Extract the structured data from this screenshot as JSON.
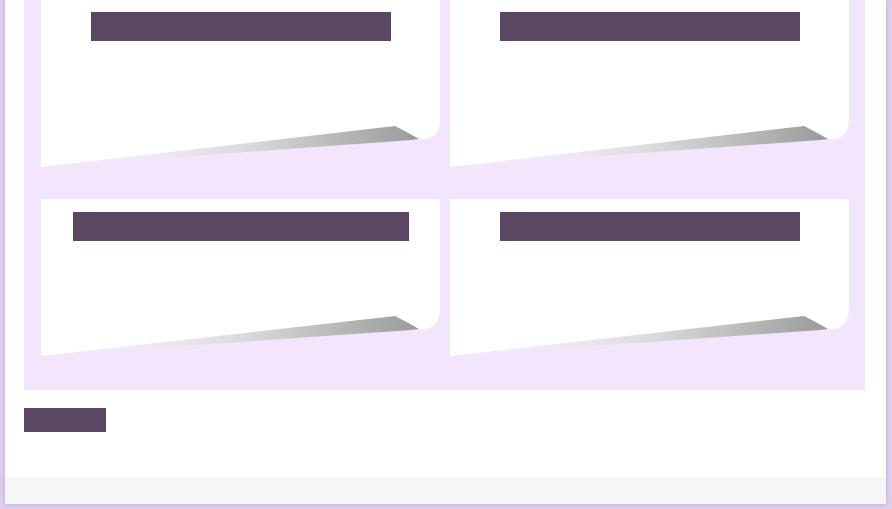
{
  "colors": {
    "page_background": "#ddd0ee",
    "panel_background": "#f1e6fc",
    "card_background": "#ffffff",
    "redacted_block": "#5a4862"
  },
  "cards": [
    {
      "title": ""
    },
    {
      "title": ""
    },
    {
      "title": ""
    },
    {
      "title": ""
    }
  ],
  "footer": {
    "button_label": ""
  }
}
